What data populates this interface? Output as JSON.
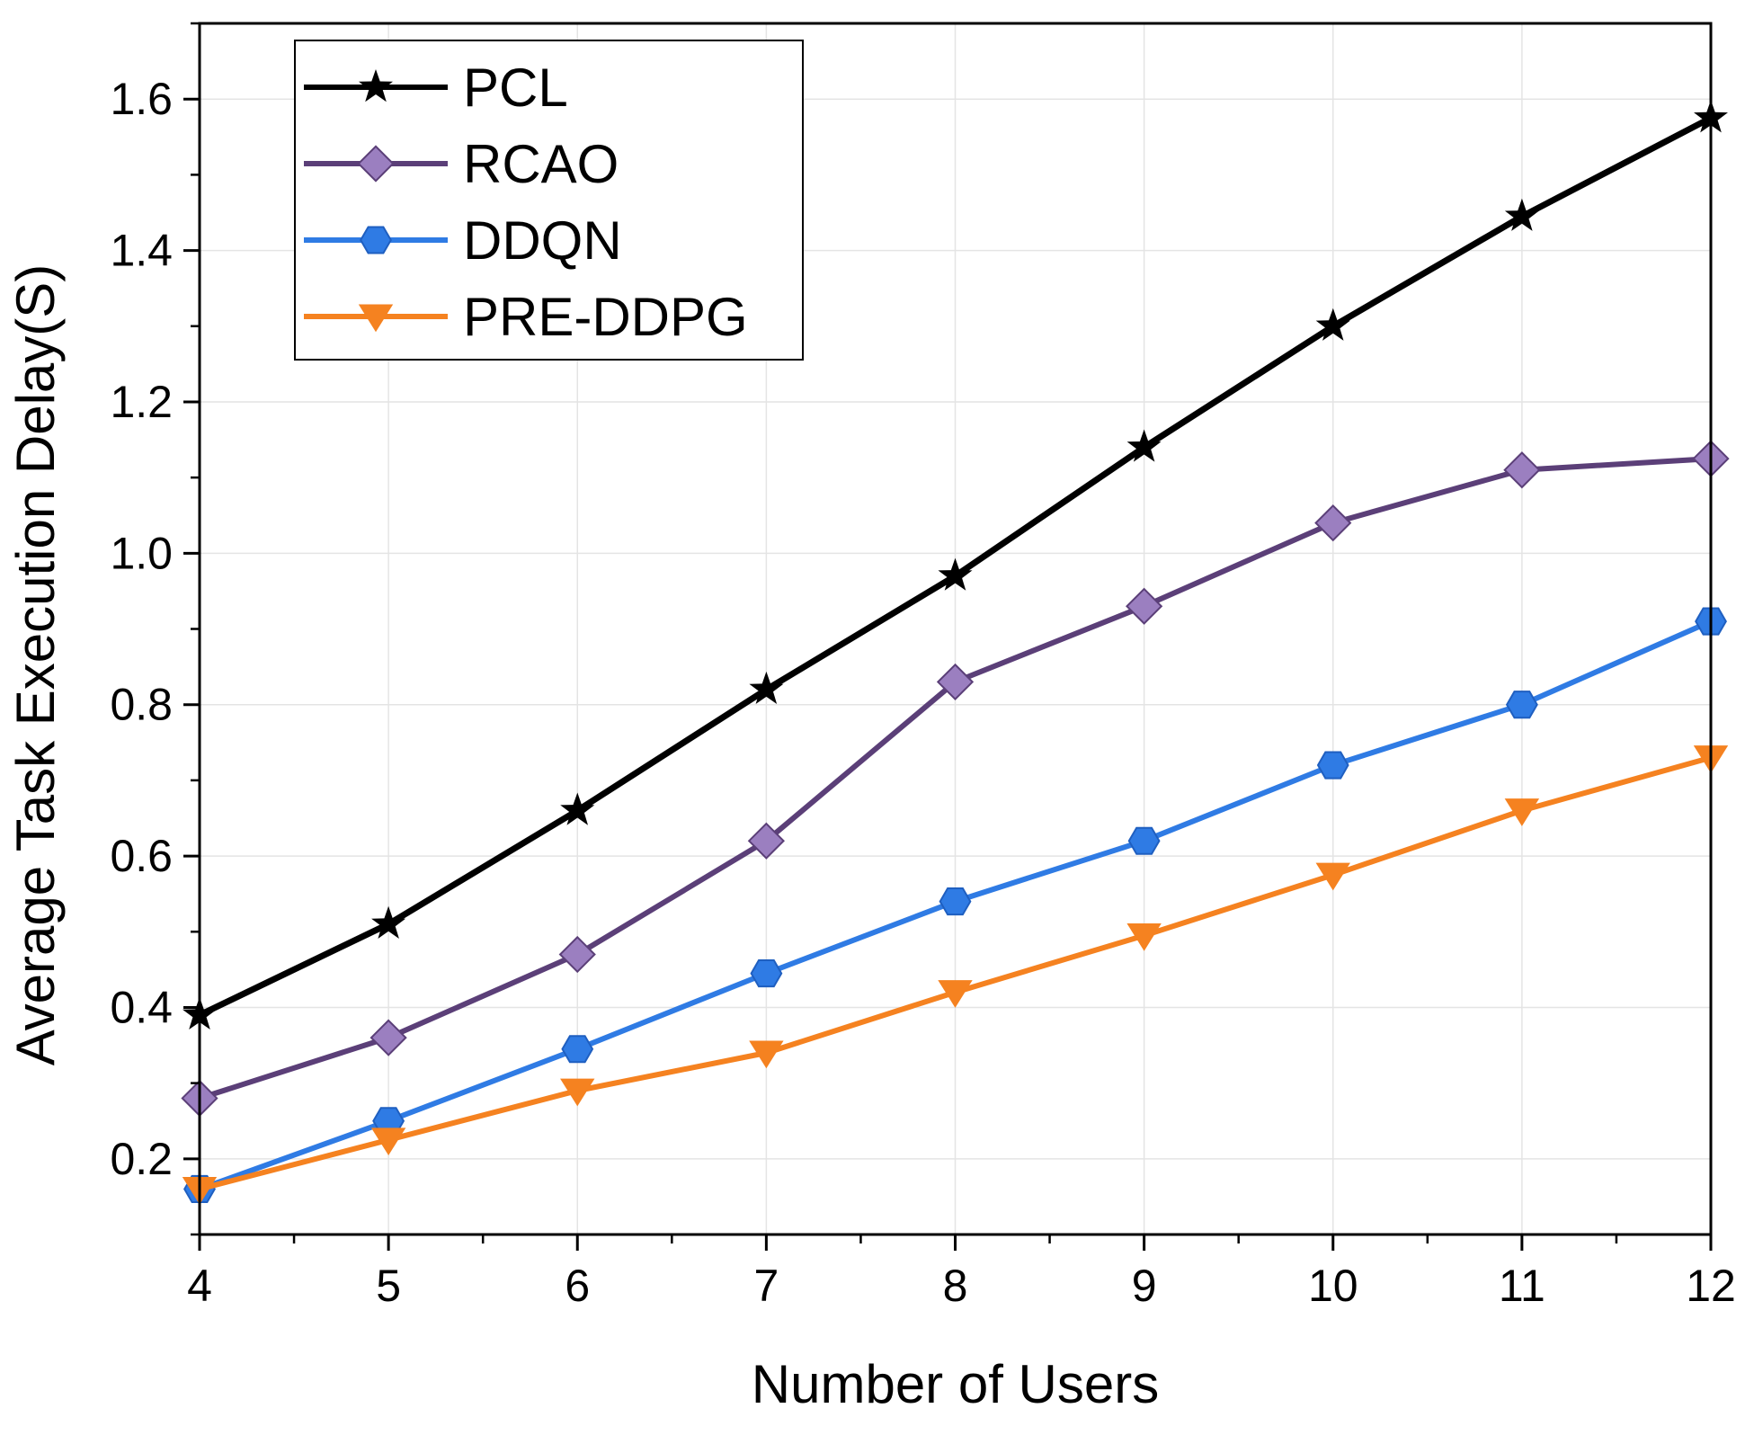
{
  "chart_data": {
    "type": "line",
    "title": "",
    "xlabel": "Number of Users",
    "ylabel": "Average Task Execution Delay(S)",
    "x": [
      4,
      5,
      6,
      7,
      8,
      9,
      10,
      11,
      12
    ],
    "xlim": [
      4,
      12
    ],
    "ylim": [
      0.1,
      1.7
    ],
    "xticks": [
      4,
      5,
      6,
      7,
      8,
      9,
      10,
      11,
      12
    ],
    "xtick_labels": [
      "4",
      "5",
      "6",
      "7",
      "8",
      "9",
      "10",
      "11",
      "12"
    ],
    "yticks": [
      0.2,
      0.4,
      0.6,
      0.8,
      1.0,
      1.2,
      1.4,
      1.6
    ],
    "ytick_labels": [
      "0.2",
      "0.4",
      "0.6",
      "0.8",
      "1.0",
      "1.2",
      "1.4",
      "1.6"
    ],
    "grid": true,
    "legend_position": "top-left",
    "series": [
      {
        "name": "PCL",
        "marker": "star",
        "color": "#000000",
        "values": [
          0.39,
          0.51,
          0.66,
          0.82,
          0.97,
          1.14,
          1.3,
          1.445,
          1.575
        ]
      },
      {
        "name": "RCAO",
        "marker": "diamond",
        "color": "#5B3F78",
        "values": [
          0.28,
          0.36,
          0.47,
          0.62,
          0.83,
          0.93,
          1.04,
          1.11,
          1.125
        ]
      },
      {
        "name": "DDQN",
        "marker": "hexagon",
        "color": "#2F7BE4",
        "values": [
          0.16,
          0.25,
          0.345,
          0.445,
          0.54,
          0.62,
          0.72,
          0.8,
          0.91
        ]
      },
      {
        "name": "PRE-DDPG",
        "marker": "triangle-down",
        "color": "#F58220",
        "values": [
          0.16,
          0.225,
          0.29,
          0.34,
          0.42,
          0.495,
          0.575,
          0.66,
          0.73
        ]
      }
    ]
  }
}
